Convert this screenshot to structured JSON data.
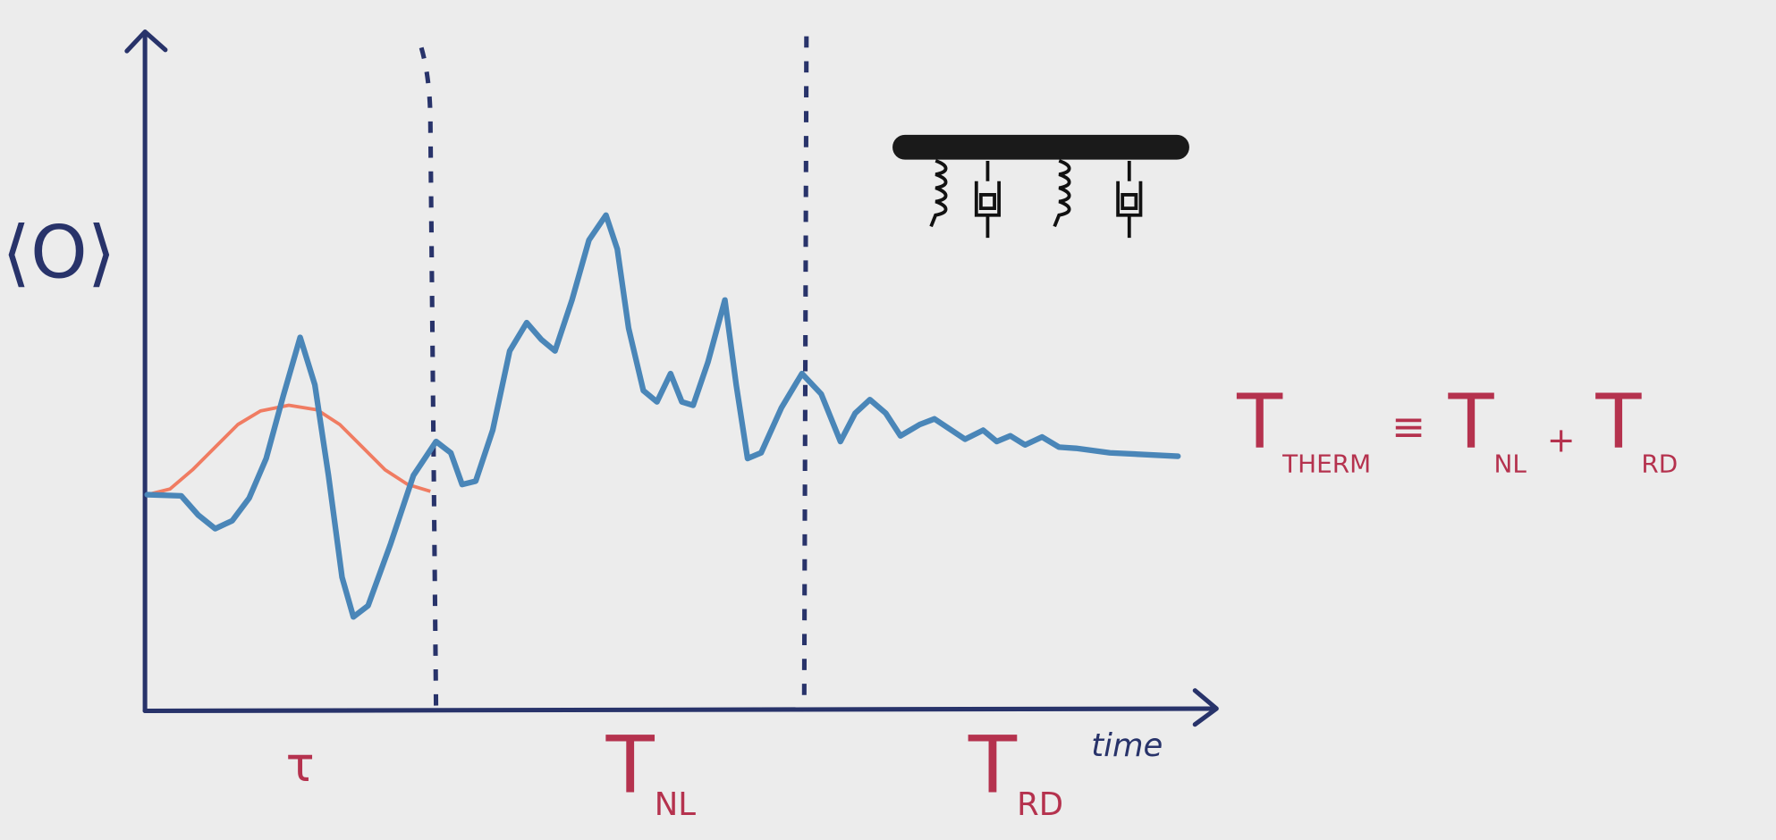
{
  "axes": {
    "y_label": "⟨O⟩",
    "x_label": "time"
  },
  "phases": [
    {
      "symbol": "τ"
    },
    {
      "symbol": "T",
      "subscript": "NL"
    },
    {
      "symbol": "T",
      "subscript": "RD"
    }
  ],
  "equation": {
    "terms": [
      {
        "symbol": "T",
        "subscript": "THERM"
      },
      {
        "symbol": "T",
        "subscript": "NL"
      },
      {
        "symbol": "T",
        "subscript": "RD"
      }
    ],
    "operators": [
      "≡",
      "+"
    ]
  }
}
